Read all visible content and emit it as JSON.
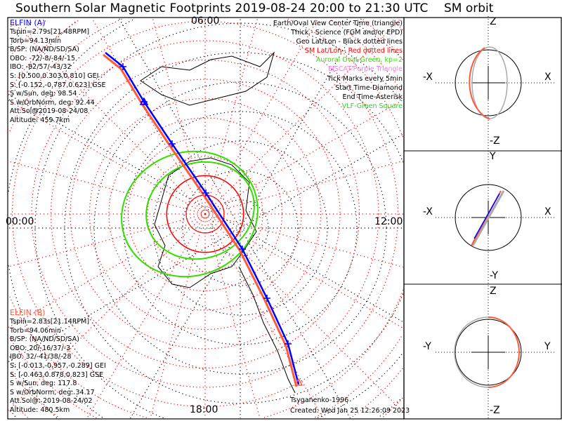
{
  "title": "Southern Solar Magnetic Footprints 2019-08-24 20:00 to 21:30 UTC",
  "orbit_title": "SM orbit",
  "elfin_a": {
    "name": "ELFIN (A)",
    "lines": [
      "Tspin=2.79s[21.48RPM]",
      "Torb=94.13min",
      "B/SP: (NA/ND/SD/SA)",
      "OBO: -72/-8/-84/-15",
      "IBO: -82/57/-43/32",
      "S: [0.500,0.303,0.810] GEI",
      "S: [-0.152,-0.787,0.623] GSE",
      "S w/Sun, deg: 98.54",
      "S w/OrbNorm, deg: 92.44",
      "Att.Sol@2019-08-24/08",
      "Altitude: 459.7km"
    ],
    "color": "#0000ff"
  },
  "elfin_b": {
    "name": "ELFIN (B)",
    "lines": [
      "Tspin=2.83s[21.14RPM]",
      "Torb=94.06min",
      "B/SP: (NA/ND/SD/SA)",
      "OBO: 20/-16/37/-3",
      "IBO: 32/-41/38/-28",
      "S: [-0.013,-0.957,-0.289] GEI",
      "S: [-0.463,0.878,0.823] GSE",
      "S w/Sun, deg: 117.8",
      "S w/OrbNorm, deg: 34.17",
      "Att.Sol@: 2019-08-24/02",
      "Altitude: 480.5km"
    ],
    "color": "#ff5a3c"
  },
  "legend": [
    {
      "text": "Earth/Oval View Center Time (triangle)",
      "color": "#000000"
    },
    {
      "text": "Thick - Science (FGM and/or EPD)",
      "color": "#000000"
    },
    {
      "text": "Geo Lat/Lon - Black dotted lines",
      "color": "#000000"
    },
    {
      "text": "SM Lat/Lon - Red dotted lines",
      "color": "#ff0000"
    },
    {
      "text": "Auroral Oval-Green, kp=2",
      "color": "#33dd00"
    },
    {
      "text": "EISCAT-Purple Triangle",
      "color": "#ee82ee"
    },
    {
      "text": "Tick Marks every 5min",
      "color": "#000000"
    },
    {
      "text": "Start Time-Diamond",
      "color": "#000000"
    },
    {
      "text": "End Time-Asterisk",
      "color": "#000000"
    },
    {
      "text": "VLF-Green Square",
      "color": "#33cc33"
    }
  ],
  "mlt_labels": {
    "top": "06:00",
    "left": "00:00",
    "right": "12:00",
    "bottom": "18:00"
  },
  "footer": {
    "model": "Tsyganenko-1996",
    "created": "Created: Wed Jan 25 12:26:09 2023"
  },
  "orbit_panels": [
    {
      "top": "Z",
      "bottom": "-Z",
      "left": "-X",
      "right": "X"
    },
    {
      "top": "Y",
      "bottom": "-Y",
      "left": "-X",
      "right": "X"
    },
    {
      "top": "Z",
      "bottom": "-Z",
      "left": "-Y",
      "right": "Y"
    }
  ]
}
